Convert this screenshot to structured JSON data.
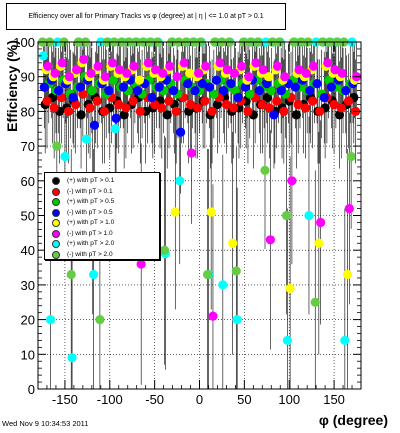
{
  "title": "Efficiency over all for Primary Tracks vs φ (degree) at | η | <= 1.0 at pT > 0.1",
  "date_stamp": "Wed Nov  9 10:34:53 2011",
  "chart_data": {
    "type": "scatter",
    "xlabel": "φ (degree)",
    "ylabel": "Efficiency (%)",
    "xlim": [
      -180,
      180
    ],
    "ylim": [
      0,
      100
    ],
    "xticks": [
      -150,
      -100,
      -50,
      0,
      50,
      100,
      150
    ],
    "yticks": [
      0,
      10,
      20,
      30,
      40,
      50,
      60,
      70,
      80,
      90,
      100
    ],
    "grid": true,
    "legend_position": "center-left",
    "series": [
      {
        "name": "(+) with pT > 0.1",
        "color": "#000000",
        "x": [
          -172,
          -164,
          -156,
          -148,
          -140,
          -132,
          -124,
          -116,
          -108,
          -100,
          -92,
          -84,
          -76,
          -68,
          -60,
          -52,
          -44,
          -36,
          -28,
          -20,
          -12,
          -4,
          4,
          12,
          20,
          28,
          36,
          44,
          52,
          60,
          68,
          76,
          84,
          92,
          100,
          108,
          116,
          124,
          132,
          140,
          148,
          156,
          164,
          172
        ],
        "y": [
          82,
          84,
          80,
          81,
          83,
          79,
          82,
          84,
          80,
          81,
          83,
          79,
          82,
          84,
          80,
          81,
          83,
          79,
          82,
          84,
          80,
          81,
          83,
          79,
          82,
          84,
          80,
          81,
          83,
          79,
          82,
          84,
          80,
          81,
          83,
          79,
          82,
          84,
          80,
          81,
          83,
          79,
          82,
          84
        ]
      },
      {
        "name": "(-) with pT > 0.1",
        "color": "#ff0000",
        "x": [
          -170,
          -162,
          -154,
          -146,
          -138,
          -130,
          -122,
          -114,
          -106,
          -98,
          -90,
          -82,
          -74,
          -66,
          -58,
          -50,
          -42,
          -34,
          -26,
          -18,
          -10,
          -2,
          6,
          14,
          22,
          30,
          38,
          46,
          54,
          62,
          70,
          78,
          86,
          94,
          102,
          110,
          118,
          126,
          134,
          142,
          150,
          158,
          166,
          174
        ],
        "y": [
          83,
          81,
          84,
          80,
          82,
          85,
          81,
          83,
          80,
          84,
          82,
          81,
          83,
          80,
          84,
          82,
          81,
          83,
          80,
          84,
          82,
          81,
          83,
          80,
          84,
          82,
          81,
          83,
          80,
          84,
          82,
          81,
          83,
          80,
          84,
          82,
          81,
          83,
          80,
          84,
          82,
          81,
          83,
          80
        ]
      },
      {
        "name": "(+) with pT > 0.5",
        "color": "#00cc00",
        "x": [
          -168,
          -160,
          -152,
          -144,
          -136,
          -128,
          -120,
          -112,
          -104,
          -96,
          -88,
          -80,
          -72,
          -64,
          -56,
          -48,
          -40,
          -32,
          -24,
          -16,
          -8,
          0,
          8,
          16,
          24,
          32,
          40,
          48,
          56,
          64,
          72,
          80,
          88,
          96,
          104,
          112,
          120,
          128,
          136,
          144,
          152,
          160,
          168
        ],
        "y": [
          88,
          86,
          89,
          85,
          87,
          90,
          86,
          88,
          85,
          89,
          87,
          86,
          88,
          85,
          89,
          87,
          86,
          88,
          85,
          89,
          87,
          86,
          88,
          85,
          89,
          87,
          86,
          88,
          85,
          89,
          87,
          86,
          88,
          85,
          89,
          87,
          86,
          88,
          85,
          89,
          87,
          86,
          88
        ]
      },
      {
        "name": "(-) with pT > 0.5",
        "color": "#0000ff",
        "x": [
          -173,
          -165,
          -157,
          -149,
          -141,
          -133,
          -125,
          -117,
          -109,
          -101,
          -93,
          -85,
          -77,
          -69,
          -61,
          -53,
          -45,
          -37,
          -29,
          -21,
          -13,
          -5,
          3,
          11,
          19,
          27,
          35,
          43,
          51,
          59,
          67,
          75,
          83,
          91,
          99,
          107,
          115,
          123,
          131,
          139,
          147,
          155,
          163,
          171
        ],
        "y": [
          87,
          89,
          86,
          88,
          84,
          87,
          89,
          76,
          88,
          86,
          78,
          87,
          89,
          86,
          88,
          84,
          87,
          89,
          86,
          74,
          88,
          86,
          88,
          87,
          89,
          86,
          88,
          84,
          87,
          89,
          86,
          88,
          79,
          86,
          88,
          87,
          89,
          86,
          88,
          84,
          87,
          89,
          86,
          88
        ]
      },
      {
        "name": "(+) with pT > 1.0",
        "color": "#ffff00",
        "x": [
          -171,
          -163,
          -155,
          -147,
          -139,
          -131,
          -123,
          -115,
          -107,
          -99,
          -91,
          -83,
          -75,
          -67,
          -59,
          -51,
          -43,
          -35,
          -27,
          -19,
          -11,
          -3,
          5,
          13,
          21,
          29,
          37,
          45,
          53,
          61,
          69,
          77,
          85,
          93,
          101,
          109,
          117,
          125,
          133,
          141,
          149,
          157,
          165,
          173
        ],
        "y": [
          92,
          90,
          93,
          89,
          91,
          94,
          90,
          92,
          89,
          93,
          91,
          90,
          92,
          89,
          93,
          91,
          90,
          92,
          51,
          93,
          91,
          90,
          92,
          51,
          93,
          91,
          42,
          92,
          89,
          93,
          91,
          90,
          92,
          89,
          29,
          91,
          90,
          92,
          42,
          93,
          91,
          90,
          33,
          89
        ]
      },
      {
        "name": "(-) with pT > 1.0",
        "color": "#ff00ff",
        "x": [
          -169,
          -161,
          -153,
          -145,
          -137,
          -129,
          -121,
          -113,
          -105,
          -97,
          -89,
          -81,
          -73,
          -65,
          -57,
          -49,
          -41,
          -33,
          -25,
          -17,
          -9,
          -1,
          7,
          15,
          23,
          31,
          39,
          47,
          55,
          63,
          71,
          79,
          87,
          95,
          103,
          111,
          119,
          127,
          135,
          143,
          151,
          159,
          167,
          175
        ],
        "y": [
          93,
          91,
          94,
          90,
          92,
          95,
          91,
          93,
          90,
          94,
          92,
          91,
          93,
          36,
          94,
          92,
          91,
          93,
          90,
          94,
          68,
          91,
          93,
          21,
          94,
          92,
          91,
          93,
          90,
          94,
          92,
          43,
          93,
          90,
          60,
          92,
          91,
          93,
          48,
          94,
          92,
          91,
          52,
          90
        ]
      },
      {
        "name": "(+) with pT > 2.0",
        "color": "#00ffff",
        "x": [
          -174,
          -166,
          -158,
          -150,
          -142,
          -134,
          -126,
          -118,
          -110,
          -102,
          -94,
          -86,
          -78,
          -70,
          -62,
          -54,
          -46,
          -38,
          -30,
          -22,
          -14,
          -6,
          2,
          10,
          18,
          26,
          34,
          42,
          50,
          58,
          66,
          74,
          82,
          90,
          98,
          106,
          114,
          122,
          130,
          138,
          146,
          154,
          162,
          170
        ],
        "y": [
          96,
          20,
          100,
          67,
          9,
          100,
          72,
          33,
          100,
          100,
          75,
          100,
          100,
          100,
          100,
          100,
          100,
          39,
          100,
          60,
          100,
          100,
          100,
          33,
          100,
          30,
          100,
          20,
          100,
          100,
          100,
          100,
          100,
          100,
          14,
          100,
          100,
          50,
          100,
          100,
          100,
          100,
          14,
          100
        ]
      },
      {
        "name": "(-) with pT > 2.0",
        "color": "#66cc44",
        "x": [
          -175,
          -167,
          -159,
          -151,
          -143,
          -135,
          -127,
          -119,
          -111,
          -103,
          -95,
          -87,
          -79,
          -71,
          -63,
          -55,
          -47,
          -39,
          -31,
          -23,
          -15,
          -7,
          1,
          9,
          17,
          25,
          33,
          41,
          49,
          57,
          65,
          73,
          81,
          89,
          97,
          105,
          113,
          121,
          129,
          137,
          145,
          153,
          161,
          169
        ],
        "y": [
          100,
          100,
          70,
          100,
          33,
          100,
          100,
          50,
          20,
          100,
          100,
          100,
          100,
          100,
          100,
          100,
          100,
          40,
          100,
          100,
          100,
          100,
          100,
          33,
          100,
          100,
          100,
          34,
          100,
          100,
          100,
          63,
          100,
          100,
          50,
          100,
          100,
          100,
          25,
          100,
          100,
          100,
          100,
          67
        ]
      }
    ]
  }
}
